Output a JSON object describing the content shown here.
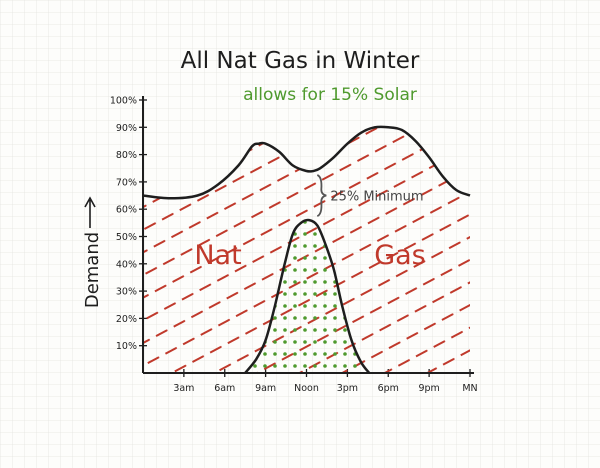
{
  "chart_data": {
    "type": "area",
    "title": "All Nat Gas in Winter",
    "subtitle": "allows for 15% Solar",
    "ylabel": "Demand",
    "ylim": [
      0,
      100
    ],
    "y_ticks": [
      "10%",
      "20%",
      "30%",
      "40%",
      "50%",
      "60%",
      "70%",
      "80%",
      "90%",
      "100%"
    ],
    "x_ticks": [
      {
        "label": "3am",
        "hour": 3
      },
      {
        "label": "6am",
        "hour": 6
      },
      {
        "label": "9am",
        "hour": 9
      },
      {
        "label": "Noon",
        "hour": 12
      },
      {
        "label": "3pm",
        "hour": 15
      },
      {
        "label": "6pm",
        "hour": 18
      },
      {
        "label": "9pm",
        "hour": 21
      },
      {
        "label": "MN",
        "hour": 24
      }
    ],
    "xlim": [
      0,
      24
    ],
    "series": [
      {
        "name": "Nat Gas",
        "color": "#c0392b",
        "fill": "hatched",
        "x": [
          0,
          2,
          4,
          5.5,
          7,
          8,
          8.5,
          9,
          10,
          11,
          12,
          12.5,
          13,
          14,
          15,
          16,
          17,
          18,
          19,
          20,
          21,
          22,
          23,
          24
        ],
        "y": [
          65,
          64,
          65,
          69,
          76,
          83,
          84,
          84,
          81,
          76,
          74,
          74,
          75,
          79,
          84,
          88,
          90,
          90,
          89,
          85,
          79,
          72,
          67,
          65
        ]
      },
      {
        "name": "Solar",
        "color": "#4f9a2e",
        "fill": "dotted",
        "x": [
          7.5,
          8.3,
          9,
          9.7,
          10.4,
          11,
          11.6,
          12.2,
          12.8,
          13.4,
          14,
          14.6,
          15.3,
          16,
          16.6
        ],
        "y": [
          0,
          5,
          12,
          25,
          40,
          51,
          55,
          56,
          54,
          47,
          38,
          25,
          12,
          4,
          0
        ]
      }
    ],
    "labels": {
      "nat": "Nat",
      "gas": "Gas"
    },
    "annotation": {
      "text": "25% Minimum",
      "from_y": 56,
      "to_y": 74,
      "hour": 12.5
    }
  }
}
